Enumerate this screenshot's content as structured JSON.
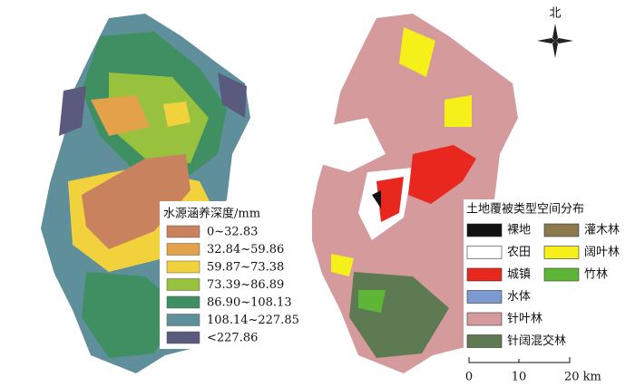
{
  "left_legend": {
    "title": "水源涵养深度/mm",
    "items": [
      {
        "label": "0~32.83",
        "color": "#c8835e"
      },
      {
        "label": "32.84~59.86",
        "color": "#e3a24a"
      },
      {
        "label": "59.87~73.38",
        "color": "#f2d23c"
      },
      {
        "label": "73.39~86.89",
        "color": "#98c23e"
      },
      {
        "label": "86.90~108.13",
        "color": "#3f8f62"
      },
      {
        "label": "108.14~227.85",
        "color": "#5e8f9a"
      },
      {
        "label": "<227.86",
        "color": "#5a5a7e"
      }
    ]
  },
  "right_legend": {
    "title": "土地覆被类型空间分布",
    "items": [
      {
        "label": "裸地",
        "color": "#111111"
      },
      {
        "label": "灌木林",
        "color": "#8c7a4e"
      },
      {
        "label": "农田",
        "color": "#ffffff"
      },
      {
        "label": "阔叶林",
        "color": "#f5ef1a"
      },
      {
        "label": "城镇",
        "color": "#e8271f"
      },
      {
        "label": "竹林",
        "color": "#5fb535"
      },
      {
        "label": "水体",
        "color": "#7d9ad0"
      },
      {
        "label": "针叶林",
        "color": "#d49a9c"
      },
      {
        "label": "针阔混交林",
        "color": "#5e7a52"
      }
    ]
  },
  "compass": {
    "label": "北"
  },
  "scale_bar": {
    "labels": [
      "0",
      "10",
      "20 km"
    ]
  }
}
